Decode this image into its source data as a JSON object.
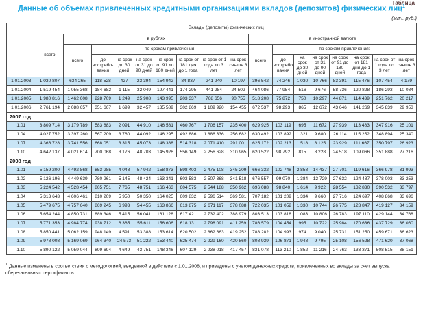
{
  "corner_note": "Таблица",
  "title": {
    "text": "Данные об объемах привлеченных кредитными организациями вкладов (депозитов) физических лиц",
    "superscript": "1"
  },
  "unit_label": "(млн. руб.)",
  "colors": {
    "title_accent": "#19a3de",
    "row_stripe": "#c9e5f6",
    "grid_border": "#4d4d4d"
  },
  "table": {
    "header": {
      "top": "Вклады (депозиты) физических лиц",
      "col_total": "всего",
      "group_rub": "в рублях",
      "group_fx": "в иностранной валюте",
      "subtotal": "всего",
      "by_term": "по срокам привлечения:",
      "terms": [
        "до востребо- вания",
        "на срок до 30 дней",
        "на срок от 31 до 90 дней",
        "на срок от 91 до 180 дней",
        "на срок от 181 дня до 1 года",
        "на срок от 1 года до 3 лет",
        "на срок свыше 3 лет"
      ]
    },
    "sections": [
      {
        "year_label": null,
        "rows": [
          [
            "1.01.2003",
            "1 030 807",
            "634 265",
            "118 528",
            "427",
            "23 394",
            "154 942",
            "84 837",
            "241 940",
            "10 197",
            "396 542",
            "74 246",
            "1 030",
            "10 766",
            "83 391",
            "115 476",
            "107 454",
            "4 179"
          ],
          [
            "1.01.2004",
            "1 519 454",
            "1 055 368",
            "184 682",
            "1 115",
            "32 049",
            "197 441",
            "174 295",
            "441 284",
            "24 502",
            "464 086",
            "77 954",
            "516",
            "9 676",
            "58 736",
            "120 828",
            "186 293",
            "10 084"
          ],
          [
            "1.01.2005",
            "1 980 816",
            "1 462 608",
            "228 709",
            "1 249",
            "25 908",
            "143 995",
            "203 337",
            "768 656",
            "90 755",
            "518 208",
            "75 872",
            "750",
            "10 297",
            "44 871",
            "114 439",
            "251 762",
            "20 217"
          ],
          [
            "1.01.2006",
            "2 761 194",
            "2 088 657",
            "351 667",
            "1 699",
            "32 457",
            "135 589",
            "302 869",
            "1 109 920",
            "154 455",
            "672 537",
            "98 293",
            "865",
            "12 672",
            "43 646",
            "141 269",
            "345 839",
            "29 953"
          ]
        ]
      },
      {
        "year_label": "2007 год",
        "rows": [
          [
            "1.01",
            "3 809 714",
            "3 179 789",
            "583 883",
            "2 091",
            "44 910",
            "146 581",
            "460 767",
            "1 706 157",
            "235 400",
            "629 925",
            "103 119",
            "695",
            "11 672",
            "27 939",
            "113 483",
            "347 916",
            "25 101"
          ],
          [
            "1.04",
            "4 027 752",
            "3 397 260",
            "567 209",
            "3 760",
            "44 092",
            "146 295",
            "492 886",
            "1 886 336",
            "256 682",
            "630 492",
            "103 892",
            "1 321",
            "9 680",
            "26 114",
            "115 252",
            "348 894",
            "25 340"
          ],
          [
            "1.07",
            "4 366 728",
            "3 741 556",
            "668 051",
            "3 315",
            "45 073",
            "148 388",
            "514 318",
            "2 071 410",
            "291 001",
            "625 172",
            "102 213",
            "1 518",
            "8 125",
            "23 929",
            "111 667",
            "350 797",
            "26 923"
          ],
          [
            "1.10",
            "4 642 137",
            "4 021 614",
            "700 068",
            "3 176",
            "48 703",
            "145 926",
            "556 149",
            "2 256 628",
            "310 965",
            "620 522",
            "98 792",
            "815",
            "8 228",
            "24 518",
            "109 066",
            "351 888",
            "27 216"
          ]
        ]
      },
      {
        "year_label": "2008 год",
        "rows": [
          [
            "1.01",
            "5 159 200",
            "4 492 868",
            "853 285",
            "4 048",
            "57 942",
            "158 873",
            "598 403",
            "2 475 108",
            "345 209",
            "666 332",
            "102 748",
            "2 858",
            "14 437",
            "27 701",
            "119 616",
            "366 978",
            "31 993"
          ],
          [
            "1.02",
            "5 126 196",
            "4 449 639",
            "780 261",
            "5 145",
            "48 424",
            "163 341",
            "603 583",
            "2 507 368",
            "341 518",
            "676 557",
            "99 070",
            "1 384",
            "12 729",
            "27 632",
            "124 487",
            "378 003",
            "33 253"
          ],
          [
            "1.03",
            "5 224 542",
            "4 528 454",
            "805 751",
            "7 765",
            "48 751",
            "166 463",
            "604 575",
            "2 544 188",
            "350 962",
            "696 088",
            "98 840",
            "1 614",
            "9 922",
            "28 554",
            "132 830",
            "390 532",
            "33 797"
          ],
          [
            "1.04",
            "5 313 643",
            "4 606 461",
            "810 209",
            "5 950",
            "50 350",
            "164 025",
            "609 832",
            "2 596 514",
            "369 581",
            "707 182",
            "101 209",
            "1 334",
            "9 660",
            "27 716",
            "124 697",
            "408 868",
            "33 696"
          ],
          [
            "1.05",
            "5 479 675",
            "4 757 640",
            "869 245",
            "6 993",
            "54 455",
            "163 866",
            "613 875",
            "2 671 117",
            "378 088",
            "722 035",
            "101 052",
            "1 330",
            "10 744",
            "26 775",
            "128 847",
            "419 127",
            "34 159"
          ],
          [
            "1.06",
            "5 654 244",
            "4 850 731",
            "889 346",
            "5 415",
            "56 041",
            "161 128",
            "617 421",
            "2 732 402",
            "388 979",
            "803 513",
            "103 818",
            "1 083",
            "10 806",
            "26 783",
            "197 110",
            "429 144",
            "34 768"
          ],
          [
            "1.07",
            "5 771 353",
            "4 984 774",
            "938 712",
            "6 365",
            "55 611",
            "156 606",
            "618 131",
            "2 798 091",
            "411 259",
            "786 579",
            "104 454",
            "995",
            "10 722",
            "25 984",
            "170 636",
            "437 729",
            "36 060"
          ],
          [
            "1.08",
            "5 850 441",
            "5 062 159",
            "948 149",
            "4 591",
            "53 388",
            "153 614",
            "620 502",
            "2 862 663",
            "419 252",
            "788 282",
            "104 993",
            "974",
            "9 040",
            "25 731",
            "151 250",
            "459 671",
            "36 623"
          ],
          [
            "1.09",
            "5 978 008",
            "5 169 069",
            "964 340",
            "24 573",
            "51 222",
            "153 440",
            "625 474",
            "2 929 160",
            "420 860",
            "808 939",
            "106 871",
            "1 948",
            "9 795",
            "25 108",
            "156 528",
            "471 620",
            "37 068"
          ],
          [
            "1.10",
            "5 890 122",
            "5 059 044",
            "899 694",
            "4 649",
            "43 751",
            "148 346",
            "607 129",
            "2 938 018",
            "417 457",
            "831 078",
            "113 210",
            "1 852",
            "11 216",
            "24 763",
            "133 371",
            "508 515",
            "38 151"
          ]
        ]
      }
    ]
  },
  "footnote": {
    "marker": "1",
    "text": "Данные изменены в соответствии с методологией, введенной в действие с 1.01.2008, и приведены с учетом денежных средств, привлеченных во вклады за счет выпуска сберегательных сертификатов."
  }
}
